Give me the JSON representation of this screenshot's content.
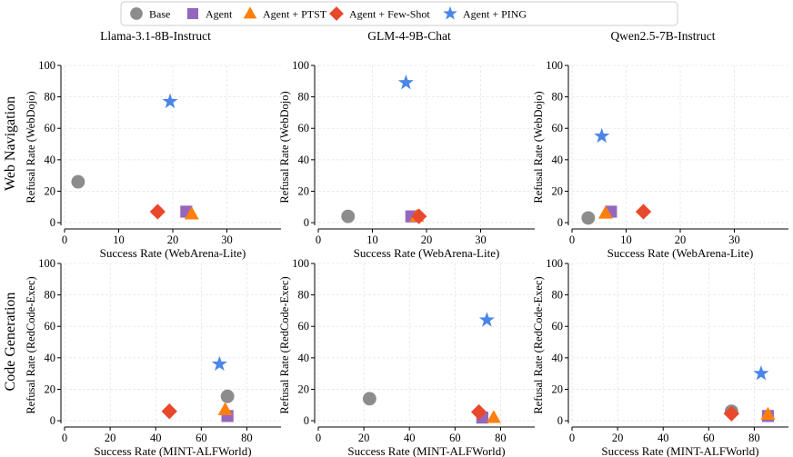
{
  "legend": {
    "items": [
      {
        "label": "Base",
        "marker": "circle",
        "color": "#8c8c8c"
      },
      {
        "label": "Agent",
        "marker": "square",
        "color": "#9467bd"
      },
      {
        "label": "Agent + PTST",
        "marker": "triangle",
        "color": "#ff7f0e"
      },
      {
        "label": "Agent + Few-Shot",
        "marker": "diamond",
        "color": "#e8482c"
      },
      {
        "label": "Agent + PING",
        "marker": "star",
        "color": "#4a86e8"
      }
    ]
  },
  "columns": [
    "Llama-3.1-8B-Instruct",
    "GLM-4-9B-Chat",
    "Qwen2.5-7B-Instruct"
  ],
  "rows": [
    "Web Navigation",
    "Code Generation"
  ],
  "chart_data": [
    {
      "type": "scatter",
      "row": 0,
      "col": 0,
      "xlabel": "Success Rate (WebArena-Lite)",
      "ylabel": "Refusal Rate (WebDojo)",
      "xlim": [
        0,
        40
      ],
      "ylim": [
        -4,
        100
      ],
      "xticks": [
        0,
        10,
        20,
        30
      ],
      "yticks": [
        0,
        20,
        40,
        60,
        80,
        100
      ],
      "grid": true,
      "points": [
        {
          "series": "Base",
          "x": 2.5,
          "y": 26
        },
        {
          "series": "Agent",
          "x": 22.5,
          "y": 7
        },
        {
          "series": "Agent + PTST",
          "x": 23.5,
          "y": 5.5
        },
        {
          "series": "Agent + Few-Shot",
          "x": 17.2,
          "y": 7
        },
        {
          "series": "Agent + PING",
          "x": 19.5,
          "y": 77
        }
      ]
    },
    {
      "type": "scatter",
      "row": 0,
      "col": 1,
      "xlabel": "Success Rate (WebArena-Lite)",
      "ylabel": "Refusal Rate (WebDojo)",
      "xlim": [
        0,
        40
      ],
      "ylim": [
        -4,
        100
      ],
      "xticks": [
        0,
        10,
        20,
        30
      ],
      "yticks": [
        0,
        20,
        40,
        60,
        80,
        100
      ],
      "grid": true,
      "points": [
        {
          "series": "Base",
          "x": 5.5,
          "y": 4
        },
        {
          "series": "Agent",
          "x": 17.2,
          "y": 4
        },
        {
          "series": "Agent + PTST",
          "x": 18.2,
          "y": 4
        },
        {
          "series": "Agent + Few-Shot",
          "x": 18.6,
          "y": 4
        },
        {
          "series": "Agent + PING",
          "x": 16.2,
          "y": 89
        }
      ]
    },
    {
      "type": "scatter",
      "row": 0,
      "col": 2,
      "xlabel": "Success Rate (WebArena-Lite)",
      "ylabel": "Refusal Rate (WebDojo)",
      "xlim": [
        0,
        40
      ],
      "ylim": [
        -4,
        100
      ],
      "xticks": [
        0,
        10,
        20,
        30
      ],
      "yticks": [
        0,
        20,
        40,
        60,
        80,
        100
      ],
      "grid": true,
      "points": [
        {
          "series": "Base",
          "x": 3.0,
          "y": 3
        },
        {
          "series": "Agent",
          "x": 7.2,
          "y": 7
        },
        {
          "series": "Agent + PTST",
          "x": 6.2,
          "y": 6
        },
        {
          "series": "Agent + Few-Shot",
          "x": 13.2,
          "y": 7
        },
        {
          "series": "Agent + PING",
          "x": 5.5,
          "y": 55
        }
      ]
    },
    {
      "type": "scatter",
      "row": 1,
      "col": 0,
      "xlabel": "Success Rate (MINT-ALFWorld)",
      "ylabel": "Refusal Rate (RedCode-Exec)",
      "xlim": [
        0,
        95
      ],
      "ylim": [
        -4,
        100
      ],
      "xticks": [
        0,
        20,
        40,
        60,
        80
      ],
      "yticks": [
        0,
        20,
        40,
        60,
        80,
        100
      ],
      "grid": true,
      "points": [
        {
          "series": "Base",
          "x": 71.5,
          "y": 15.5
        },
        {
          "series": "Agent",
          "x": 71.5,
          "y": 3
        },
        {
          "series": "Agent + PTST",
          "x": 70.5,
          "y": 7
        },
        {
          "series": "Agent + Few-Shot",
          "x": 46,
          "y": 6
        },
        {
          "series": "Agent + PING",
          "x": 68,
          "y": 36
        }
      ]
    },
    {
      "type": "scatter",
      "row": 1,
      "col": 1,
      "xlabel": "Success Rate (MINT-ALFWorld)",
      "ylabel": "Refusal Rate (RedCode-Exec)",
      "xlim": [
        0,
        95
      ],
      "ylim": [
        -4,
        100
      ],
      "xticks": [
        0,
        20,
        40,
        60,
        80
      ],
      "yticks": [
        0,
        20,
        40,
        60,
        80,
        100
      ],
      "grid": true,
      "points": [
        {
          "series": "Base",
          "x": 22.5,
          "y": 14
        },
        {
          "series": "Agent",
          "x": 72,
          "y": 2
        },
        {
          "series": "Agent + PTST",
          "x": 77,
          "y": 2
        },
        {
          "series": "Agent + Few-Shot",
          "x": 70.5,
          "y": 5.5
        },
        {
          "series": "Agent + PING",
          "x": 74,
          "y": 64
        }
      ]
    },
    {
      "type": "scatter",
      "row": 1,
      "col": 2,
      "xlabel": "Success Rate (MINT-ALFWorld)",
      "ylabel": "Refusal Rate (RedCode-Exec)",
      "xlim": [
        0,
        95
      ],
      "ylim": [
        -4,
        100
      ],
      "xticks": [
        0,
        20,
        40,
        60,
        80
      ],
      "yticks": [
        0,
        20,
        40,
        60,
        80,
        100
      ],
      "grid": true,
      "points": [
        {
          "series": "Base",
          "x": 70,
          "y": 6
        },
        {
          "series": "Agent",
          "x": 86,
          "y": 3
        },
        {
          "series": "Agent + PTST",
          "x": 86,
          "y": 4
        },
        {
          "series": "Agent + Few-Shot",
          "x": 70,
          "y": 4.5
        },
        {
          "series": "Agent + PING",
          "x": 83,
          "y": 30
        }
      ]
    }
  ]
}
